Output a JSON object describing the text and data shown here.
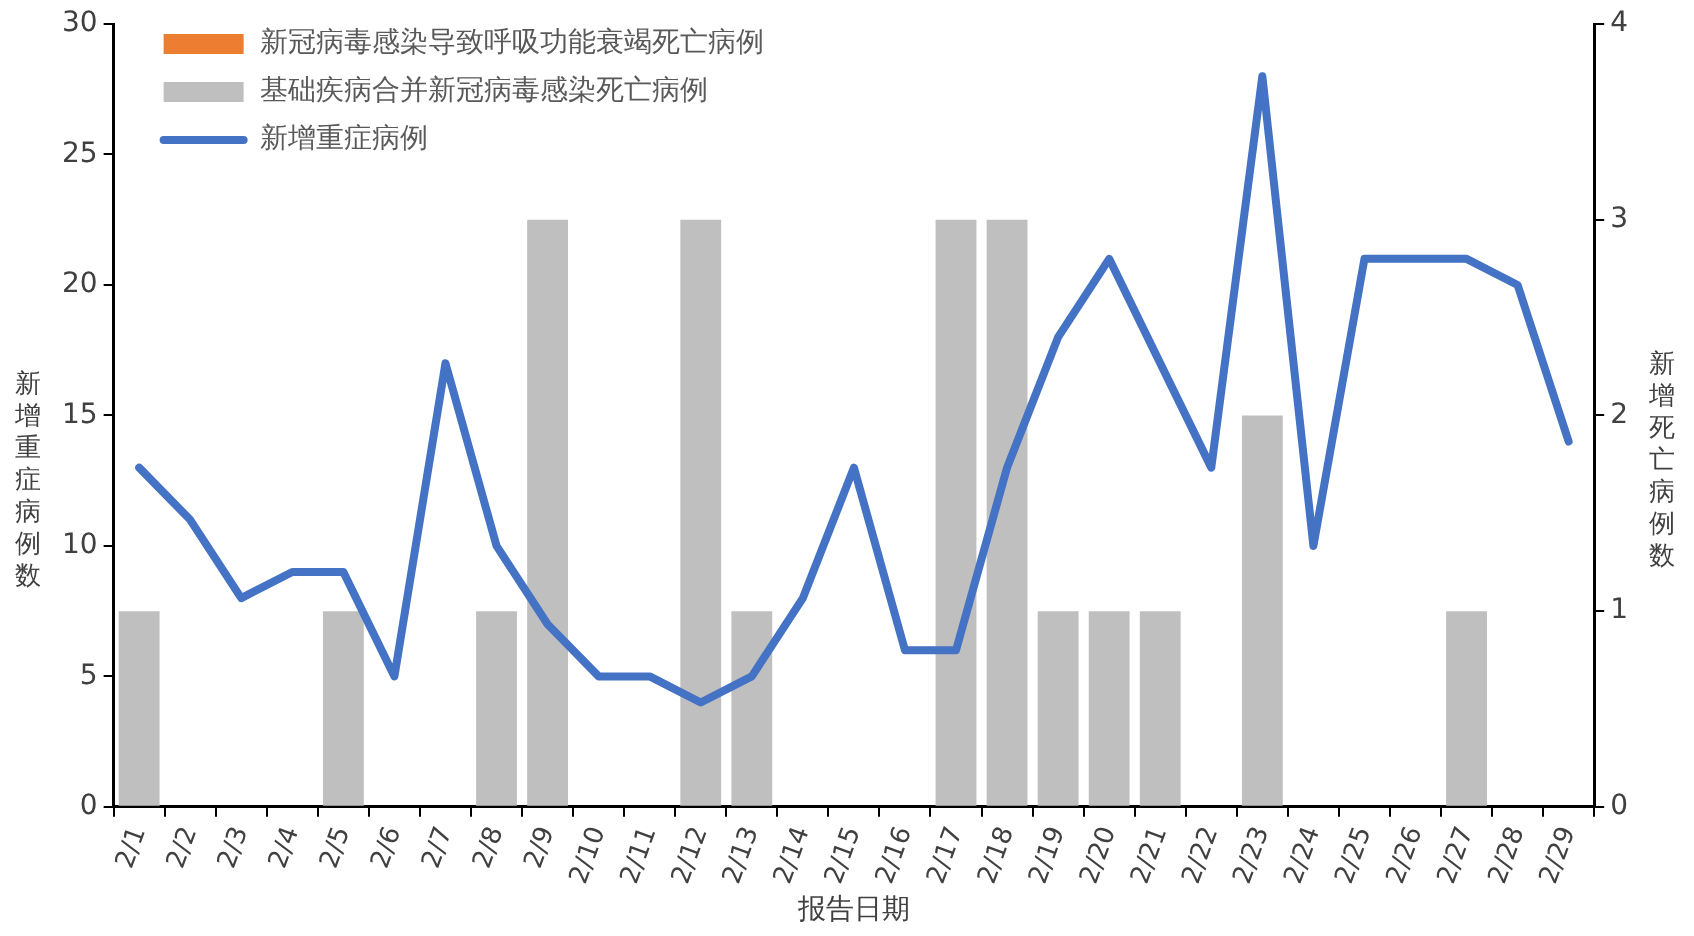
{
  "chart_data": {
    "type": "bar",
    "xlabel": "报告日期",
    "ylabel": "新增重症病例数",
    "y2label": "新增死亡病例数",
    "categories": [
      "2/1",
      "2/2",
      "2/3",
      "2/4",
      "2/5",
      "2/6",
      "2/7",
      "2/8",
      "2/9",
      "2/10",
      "2/11",
      "2/12",
      "2/13",
      "2/14",
      "2/15",
      "2/16",
      "2/17",
      "2/18",
      "2/19",
      "2/20",
      "2/21",
      "2/22",
      "2/23",
      "2/24",
      "2/25",
      "2/26",
      "2/27",
      "2/28",
      "2/29"
    ],
    "series": [
      {
        "name": "新冠病毒感染导致呼吸功能衰竭死亡病例",
        "color": "#ed7d31",
        "axis": "y2",
        "values": [
          0,
          0,
          0,
          0,
          0,
          0,
          0,
          0,
          0,
          0,
          0,
          0,
          0,
          0,
          0,
          0,
          0,
          0,
          0,
          0,
          0,
          0,
          0,
          0,
          0,
          0,
          0,
          0,
          0
        ]
      },
      {
        "name": "基础疾病合并新冠病毒感染死亡病例",
        "color": "#bfbfbf",
        "axis": "y2",
        "values": [
          1,
          0,
          0,
          0,
          1,
          0,
          0,
          1,
          3,
          0,
          0,
          3,
          1,
          0,
          0,
          0,
          3,
          3,
          1,
          1,
          1,
          0,
          2,
          0,
          0,
          0,
          1,
          0,
          0
        ]
      },
      {
        "name": "新增重症病例",
        "color": "#4472c4",
        "type": "line",
        "values": [
          13,
          11,
          8,
          9,
          9,
          5,
          17,
          10,
          7,
          5,
          5,
          4,
          5,
          8,
          13,
          6,
          6,
          13,
          18,
          21,
          17,
          13,
          28,
          10,
          21,
          21,
          21,
          20,
          14
        ]
      }
    ],
    "stacked": true,
    "ylim": [
      0,
      30
    ],
    "yticks": [
      0,
      5,
      10,
      15,
      20,
      25,
      30
    ],
    "y2lim": [
      0,
      4
    ],
    "y2ticks": [
      0,
      1,
      2,
      3,
      4
    ],
    "grid": false,
    "legend": "top left",
    "marker": "none",
    "line_style": "solid"
  }
}
